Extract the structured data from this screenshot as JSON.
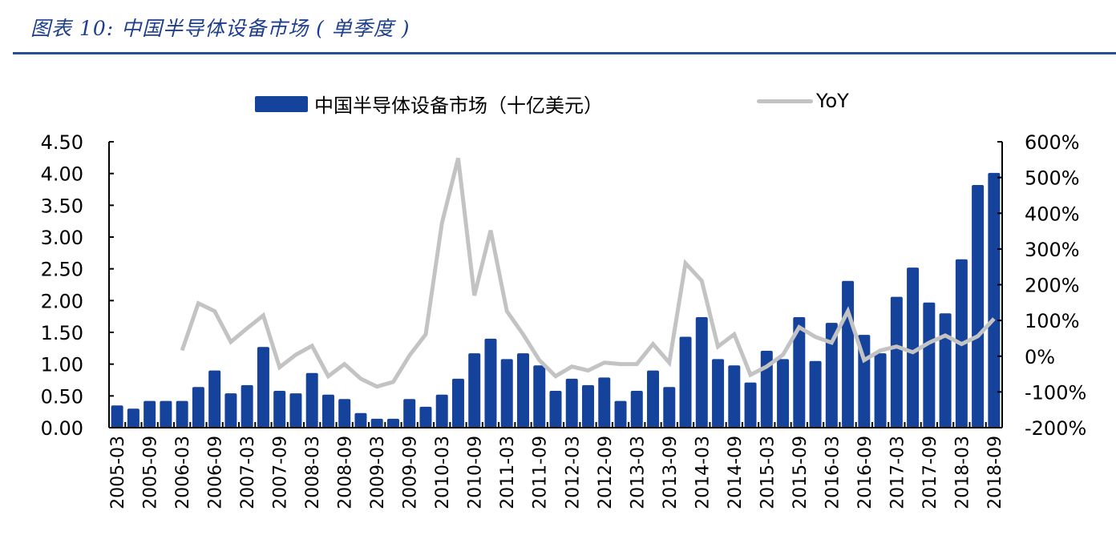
{
  "header": {
    "title": "图表 10:  中国半导体设备市场 ( 单季度 )"
  },
  "colors": {
    "bar": "#15429a",
    "line": "#c3c3c3",
    "title": "#1e3f8f",
    "rule": "#2a4d96"
  },
  "legend": {
    "bar_label": "中国半导体设备市场（十亿美元）",
    "line_label": "YoY"
  },
  "chart_data": {
    "type": "bar",
    "title": "中国半导体设备市场（单季度）",
    "xlabel": "",
    "ylabel": "",
    "legend_position": "top",
    "grid": false,
    "ylim": [
      0,
      4.5
    ],
    "y2lim": [
      -200,
      600
    ],
    "y_ticks": [
      "0.00",
      "0.50",
      "1.00",
      "1.50",
      "2.00",
      "2.50",
      "3.00",
      "3.50",
      "4.00",
      "4.50"
    ],
    "y2_ticks": [
      "-200%",
      "-100%",
      "0%",
      "100%",
      "200%",
      "300%",
      "400%",
      "500%",
      "600%"
    ],
    "categories": [
      "2005-03",
      "2005-06",
      "2005-09",
      "2005-12",
      "2006-03",
      "2006-06",
      "2006-09",
      "2006-12",
      "2007-03",
      "2007-06",
      "2007-09",
      "2007-12",
      "2008-03",
      "2008-06",
      "2008-09",
      "2008-12",
      "2009-03",
      "2009-06",
      "2009-09",
      "2009-12",
      "2010-03",
      "2010-06",
      "2010-09",
      "2010-12",
      "2011-03",
      "2011-06",
      "2011-09",
      "2011-12",
      "2012-03",
      "2012-06",
      "2012-09",
      "2012-12",
      "2013-03",
      "2013-06",
      "2013-09",
      "2013-12",
      "2014-03",
      "2014-06",
      "2014-09",
      "2014-12",
      "2015-03",
      "2015-06",
      "2015-09",
      "2015-12",
      "2016-03",
      "2016-06",
      "2016-09",
      "2016-12",
      "2017-03",
      "2017-06",
      "2017-09",
      "2017-12",
      "2018-03",
      "2018-06",
      "2018-09"
    ],
    "tick_labels_shown": [
      "2005-03",
      "2005-09",
      "2006-03",
      "2006-09",
      "2007-03",
      "2007-09",
      "2008-03",
      "2008-09",
      "2009-03",
      "2009-09",
      "2010-03",
      "2010-09",
      "2011-03",
      "2011-09",
      "2012-03",
      "2012-09",
      "2013-03",
      "2013-09",
      "2014-03",
      "2014-09",
      "2015-03",
      "2015-09",
      "2016-03",
      "2016-09",
      "2017-03",
      "2017-09",
      "2018-03",
      "2018-09"
    ],
    "series": [
      {
        "name": "中国半导体设备市场（十亿美元）",
        "type": "bar",
        "axis": "left",
        "values": [
          0.35,
          0.3,
          0.42,
          0.42,
          0.42,
          0.64,
          0.9,
          0.54,
          0.67,
          1.27,
          0.58,
          0.54,
          0.86,
          0.52,
          0.45,
          0.23,
          0.14,
          0.14,
          0.45,
          0.33,
          0.52,
          0.77,
          1.17,
          1.4,
          1.08,
          1.17,
          0.98,
          0.58,
          0.77,
          0.67,
          0.79,
          0.42,
          0.58,
          0.9,
          0.64,
          1.43,
          1.74,
          1.08,
          0.98,
          0.71,
          1.21,
          1.08,
          1.74,
          1.05,
          1.65,
          2.31,
          1.46,
          1.17,
          2.06,
          2.52,
          1.97,
          1.8,
          2.65,
          3.82,
          4.01
        ]
      },
      {
        "name": "YoY",
        "type": "line",
        "axis": "right",
        "unit": "%",
        "values": [
          null,
          null,
          null,
          null,
          16,
          148,
          126,
          40,
          78,
          114,
          -31,
          4,
          29,
          -56,
          -22,
          -63,
          -85,
          -72,
          2,
          61,
          372,
          554,
          170,
          352,
          126,
          61,
          -11,
          -56,
          -29,
          -40,
          -18,
          -22,
          -22,
          34,
          -18,
          260,
          211,
          27,
          61,
          -52,
          -29,
          4,
          81,
          54,
          38,
          126,
          -11,
          16,
          27,
          11,
          38,
          58,
          34,
          56,
          105
        ]
      }
    ]
  }
}
